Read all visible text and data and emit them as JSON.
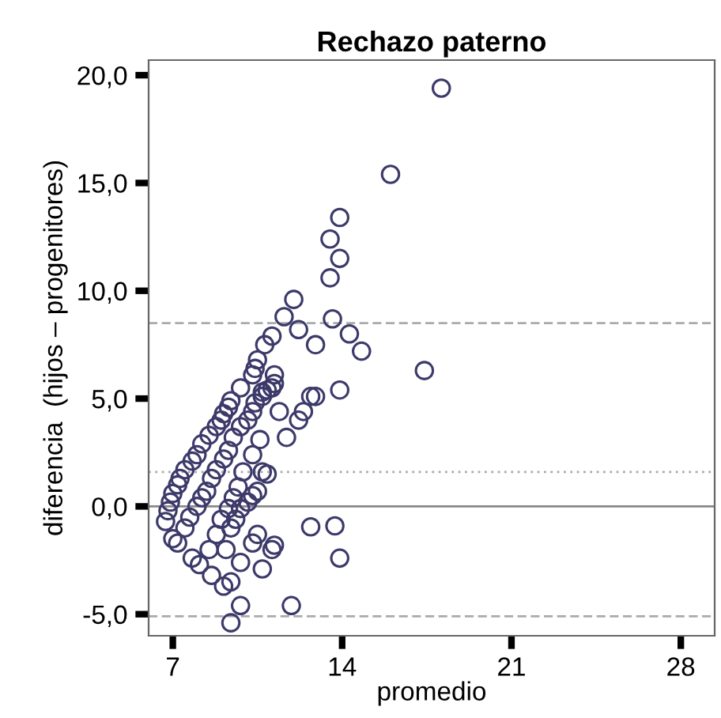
{
  "chart_data": {
    "type": "scatter",
    "title": "Rechazo paterno",
    "xlabel": "promedio",
    "ylabel": "diferencia  (hijos – progenitores)",
    "xlim": [
      6,
      29.4
    ],
    "ylim": [
      -6,
      20.7
    ],
    "xticks": [
      7,
      14,
      21,
      28
    ],
    "yticks": [
      {
        "value": -5,
        "label": "-5,0"
      },
      {
        "value": 0,
        "label": "0,0"
      },
      {
        "value": 5,
        "label": "5,0"
      },
      {
        "value": 10,
        "label": "10,0"
      },
      {
        "value": 15,
        "label": "15,0"
      },
      {
        "value": 20,
        "label": "20,0"
      }
    ],
    "grid": false,
    "marker": "circle",
    "ref_lines": [
      {
        "axis": "y",
        "value": 8.5,
        "line_style": "dashed",
        "color": "#aaaaaa"
      },
      {
        "axis": "y",
        "value": 1.6,
        "line_style": "dotted",
        "color": "#aaaaaa"
      },
      {
        "axis": "y",
        "value": 0,
        "line_style": "solid",
        "color": "#888888"
      },
      {
        "axis": "y",
        "value": -5.1,
        "line_style": "dashed",
        "color": "#aaaaaa"
      }
    ],
    "series": [
      {
        "color": "#3c3a6a",
        "x": [
          18.1,
          16.0,
          13.9,
          13.5,
          13.9,
          13.5,
          13.6,
          14.3,
          14.8,
          12.9,
          17.4,
          13.9,
          12.9,
          13.7,
          13.9,
          12.7,
          11.6,
          12.2,
          11.1,
          10.8,
          10.5,
          10.4,
          10.3,
          11.2,
          11.2,
          11.1,
          10.9,
          9.8,
          10.7,
          9.4,
          9.3,
          9.1,
          9.0,
          8.8,
          8.5,
          8.2,
          8.0,
          7.8,
          7.5,
          7.3,
          7.2,
          7.0,
          6.9,
          6.8,
          6.7,
          7.0,
          7.2,
          7.5,
          7.7,
          8.0,
          8.2,
          8.4,
          8.6,
          8.8,
          9.1,
          9.3,
          9.5,
          9.8,
          10.1,
          10.3,
          10.4,
          10.7,
          7.8,
          8.1,
          8.6,
          8.5,
          8.8,
          9.0,
          9.3,
          9.5,
          9.7,
          9.9,
          10.3,
          10.6,
          10.7,
          10.9,
          9.1,
          9.4,
          9.8,
          9.4,
          9.2,
          9.4,
          9.6,
          9.8,
          10.1,
          10.3,
          10.5,
          9.8,
          10.3,
          10.5,
          10.7,
          11.1,
          11.2,
          11.9,
          11.4,
          11.7,
          12.2,
          12.4,
          12.7,
          12.0
        ],
        "values": [
          19.4,
          15.4,
          13.4,
          12.4,
          11.5,
          10.6,
          8.7,
          8.0,
          7.2,
          7.5,
          6.3,
          5.4,
          5.1,
          -0.9,
          -2.4,
          -0.95,
          8.8,
          8.2,
          7.9,
          7.5,
          6.8,
          6.4,
          6.1,
          6.1,
          5.7,
          5.5,
          5.4,
          5.5,
          5.1,
          4.9,
          4.6,
          4.3,
          4.0,
          3.7,
          3.3,
          2.9,
          2.4,
          2.1,
          1.7,
          1.3,
          1.0,
          0.6,
          0.2,
          -0.2,
          -0.7,
          -1.5,
          -1.7,
          -1.0,
          -0.5,
          0.0,
          0.4,
          0.7,
          1.3,
          1.7,
          2.2,
          2.6,
          3.2,
          3.7,
          4.0,
          4.4,
          4.8,
          5.3,
          -2.4,
          -2.7,
          -3.2,
          -2.0,
          -1.3,
          -0.6,
          -0.1,
          0.4,
          0.9,
          1.6,
          2.4,
          3.1,
          1.6,
          1.5,
          -3.7,
          -3.5,
          -4.6,
          -5.4,
          -2.0,
          -1.0,
          -0.6,
          -0.1,
          0.2,
          0.5,
          0.7,
          -2.6,
          -1.7,
          -1.3,
          -2.9,
          -2.0,
          -1.8,
          -4.6,
          4.4,
          3.2,
          4.0,
          4.4,
          5.1,
          9.6
        ]
      }
    ]
  }
}
